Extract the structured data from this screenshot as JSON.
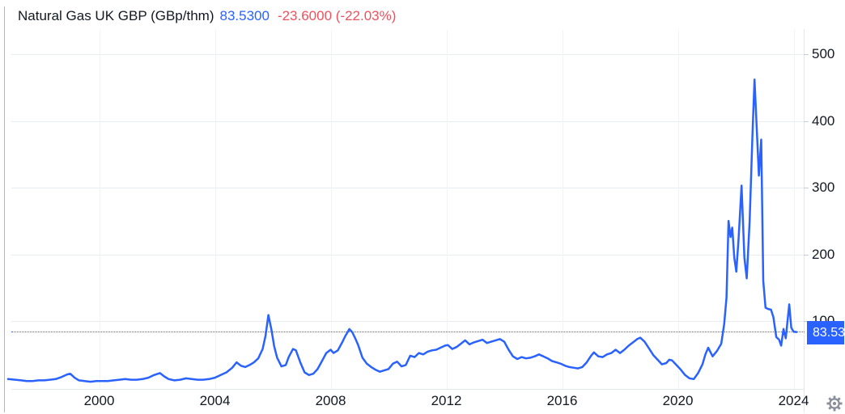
{
  "header": {
    "title": "Natural Gas UK GBP (GBp/thm)",
    "price": "83.5300",
    "change": "-23.6000 (-22.03%)"
  },
  "price_scale": {
    "current_label": "83.53"
  },
  "icons": {
    "settings": "gear-icon"
  },
  "colors": {
    "line": "#2962ff",
    "price_text": "#2962ff",
    "change_text": "#f0505c",
    "title_text": "#131722",
    "axis_text": "#131722",
    "grid_horizontal": "#e9ecf2",
    "grid_vertical": "#f1f3f8",
    "axis_border": "#e3e6ec",
    "price_label_bg": "#2962ff",
    "gear_icon": "#8a8e98"
  },
  "chart_data": {
    "type": "line",
    "title": "Natural Gas UK GBP (GBp/thm)",
    "series_name": "Natural Gas UK GBP",
    "unit": "GBp/thm",
    "current_value": 83.53,
    "change_value": -23.6,
    "change_percent": -22.03,
    "grid": true,
    "legend_position": "none",
    "x_ticks": [
      2000,
      2004,
      2008,
      2012,
      2016,
      2020,
      2024
    ],
    "y_ticks": [
      100,
      200,
      300,
      400,
      500
    ],
    "x_range": [
      1996.85,
      2024.35
    ],
    "y_range": [
      0,
      538
    ],
    "points": [
      [
        1996.85,
        13
      ],
      [
        1997.1,
        12
      ],
      [
        1997.3,
        11
      ],
      [
        1997.5,
        10
      ],
      [
        1997.7,
        10
      ],
      [
        1997.9,
        11
      ],
      [
        1998.1,
        11
      ],
      [
        1998.3,
        12
      ],
      [
        1998.5,
        13
      ],
      [
        1998.7,
        16
      ],
      [
        1998.9,
        20
      ],
      [
        1999.0,
        21
      ],
      [
        1999.15,
        15
      ],
      [
        1999.3,
        11
      ],
      [
        1999.5,
        10
      ],
      [
        1999.7,
        9
      ],
      [
        1999.9,
        10
      ],
      [
        2000.1,
        10
      ],
      [
        2000.3,
        10
      ],
      [
        2000.5,
        11
      ],
      [
        2000.7,
        12
      ],
      [
        2000.9,
        13
      ],
      [
        2001.1,
        12
      ],
      [
        2001.3,
        12
      ],
      [
        2001.5,
        13
      ],
      [
        2001.7,
        15
      ],
      [
        2001.9,
        19
      ],
      [
        2002.1,
        22
      ],
      [
        2002.25,
        17
      ],
      [
        2002.4,
        13
      ],
      [
        2002.6,
        11
      ],
      [
        2002.8,
        12
      ],
      [
        2003.0,
        14
      ],
      [
        2003.2,
        13
      ],
      [
        2003.4,
        12
      ],
      [
        2003.6,
        12
      ],
      [
        2003.8,
        13
      ],
      [
        2004.0,
        15
      ],
      [
        2004.2,
        19
      ],
      [
        2004.4,
        23
      ],
      [
        2004.6,
        30
      ],
      [
        2004.75,
        38
      ],
      [
        2004.9,
        33
      ],
      [
        2005.05,
        31
      ],
      [
        2005.2,
        34
      ],
      [
        2005.35,
        38
      ],
      [
        2005.5,
        44
      ],
      [
        2005.65,
        58
      ],
      [
        2005.75,
        78
      ],
      [
        2005.85,
        109
      ],
      [
        2005.95,
        88
      ],
      [
        2006.05,
        62
      ],
      [
        2006.15,
        45
      ],
      [
        2006.3,
        32
      ],
      [
        2006.45,
        34
      ],
      [
        2006.55,
        46
      ],
      [
        2006.7,
        58
      ],
      [
        2006.8,
        56
      ],
      [
        2006.95,
        38
      ],
      [
        2007.1,
        23
      ],
      [
        2007.25,
        19
      ],
      [
        2007.4,
        21
      ],
      [
        2007.55,
        28
      ],
      [
        2007.7,
        40
      ],
      [
        2007.85,
        52
      ],
      [
        2008.0,
        57
      ],
      [
        2008.1,
        52
      ],
      [
        2008.25,
        56
      ],
      [
        2008.4,
        68
      ],
      [
        2008.5,
        77
      ],
      [
        2008.65,
        88
      ],
      [
        2008.75,
        83
      ],
      [
        2008.85,
        74
      ],
      [
        2008.95,
        64
      ],
      [
        2009.1,
        45
      ],
      [
        2009.25,
        36
      ],
      [
        2009.4,
        31
      ],
      [
        2009.55,
        27
      ],
      [
        2009.7,
        24
      ],
      [
        2009.85,
        26
      ],
      [
        2010.0,
        28
      ],
      [
        2010.15,
        36
      ],
      [
        2010.3,
        39
      ],
      [
        2010.45,
        32
      ],
      [
        2010.6,
        34
      ],
      [
        2010.75,
        48
      ],
      [
        2010.9,
        46
      ],
      [
        2011.05,
        52
      ],
      [
        2011.2,
        50
      ],
      [
        2011.35,
        54
      ],
      [
        2011.5,
        56
      ],
      [
        2011.65,
        57
      ],
      [
        2011.8,
        60
      ],
      [
        2011.95,
        63
      ],
      [
        2012.05,
        64
      ],
      [
        2012.2,
        58
      ],
      [
        2012.35,
        61
      ],
      [
        2012.5,
        66
      ],
      [
        2012.65,
        71
      ],
      [
        2012.8,
        65
      ],
      [
        2012.95,
        68
      ],
      [
        2013.1,
        70
      ],
      [
        2013.25,
        72
      ],
      [
        2013.4,
        67
      ],
      [
        2013.55,
        69
      ],
      [
        2013.7,
        71
      ],
      [
        2013.85,
        73
      ],
      [
        2014.0,
        69
      ],
      [
        2014.15,
        57
      ],
      [
        2014.3,
        47
      ],
      [
        2014.45,
        43
      ],
      [
        2014.6,
        46
      ],
      [
        2014.75,
        44
      ],
      [
        2014.9,
        45
      ],
      [
        2015.05,
        47
      ],
      [
        2015.2,
        50
      ],
      [
        2015.35,
        47
      ],
      [
        2015.5,
        44
      ],
      [
        2015.65,
        40
      ],
      [
        2015.8,
        38
      ],
      [
        2015.95,
        36
      ],
      [
        2016.1,
        33
      ],
      [
        2016.25,
        31
      ],
      [
        2016.4,
        30
      ],
      [
        2016.55,
        29
      ],
      [
        2016.7,
        31
      ],
      [
        2016.85,
        38
      ],
      [
        2017.0,
        48
      ],
      [
        2017.1,
        53
      ],
      [
        2017.25,
        47
      ],
      [
        2017.4,
        46
      ],
      [
        2017.55,
        50
      ],
      [
        2017.7,
        52
      ],
      [
        2017.85,
        57
      ],
      [
        2018.0,
        52
      ],
      [
        2018.15,
        57
      ],
      [
        2018.3,
        63
      ],
      [
        2018.45,
        68
      ],
      [
        2018.6,
        73
      ],
      [
        2018.7,
        75
      ],
      [
        2018.85,
        69
      ],
      [
        2019.0,
        59
      ],
      [
        2019.15,
        49
      ],
      [
        2019.3,
        42
      ],
      [
        2019.45,
        35
      ],
      [
        2019.6,
        37
      ],
      [
        2019.7,
        42
      ],
      [
        2019.8,
        41
      ],
      [
        2019.95,
        34
      ],
      [
        2020.1,
        27
      ],
      [
        2020.25,
        19
      ],
      [
        2020.4,
        14
      ],
      [
        2020.55,
        13
      ],
      [
        2020.7,
        22
      ],
      [
        2020.85,
        35
      ],
      [
        2020.95,
        50
      ],
      [
        2021.05,
        60
      ],
      [
        2021.2,
        47
      ],
      [
        2021.35,
        55
      ],
      [
        2021.5,
        66
      ],
      [
        2021.6,
        95
      ],
      [
        2021.68,
        135
      ],
      [
        2021.75,
        250
      ],
      [
        2021.82,
        226
      ],
      [
        2021.88,
        240
      ],
      [
        2021.95,
        195
      ],
      [
        2022.02,
        174
      ],
      [
        2022.1,
        225
      ],
      [
        2022.2,
        303
      ],
      [
        2022.3,
        195
      ],
      [
        2022.38,
        164
      ],
      [
        2022.48,
        250
      ],
      [
        2022.58,
        380
      ],
      [
        2022.65,
        462
      ],
      [
        2022.73,
        385
      ],
      [
        2022.8,
        318
      ],
      [
        2022.88,
        372
      ],
      [
        2022.95,
        160
      ],
      [
        2023.03,
        120
      ],
      [
        2023.12,
        118
      ],
      [
        2023.22,
        117
      ],
      [
        2023.3,
        106
      ],
      [
        2023.4,
        76
      ],
      [
        2023.5,
        72
      ],
      [
        2023.57,
        63
      ],
      [
        2023.65,
        88
      ],
      [
        2023.73,
        74
      ],
      [
        2023.85,
        125
      ],
      [
        2023.92,
        90
      ],
      [
        2024.0,
        84
      ],
      [
        2024.1,
        83.5
      ]
    ]
  }
}
